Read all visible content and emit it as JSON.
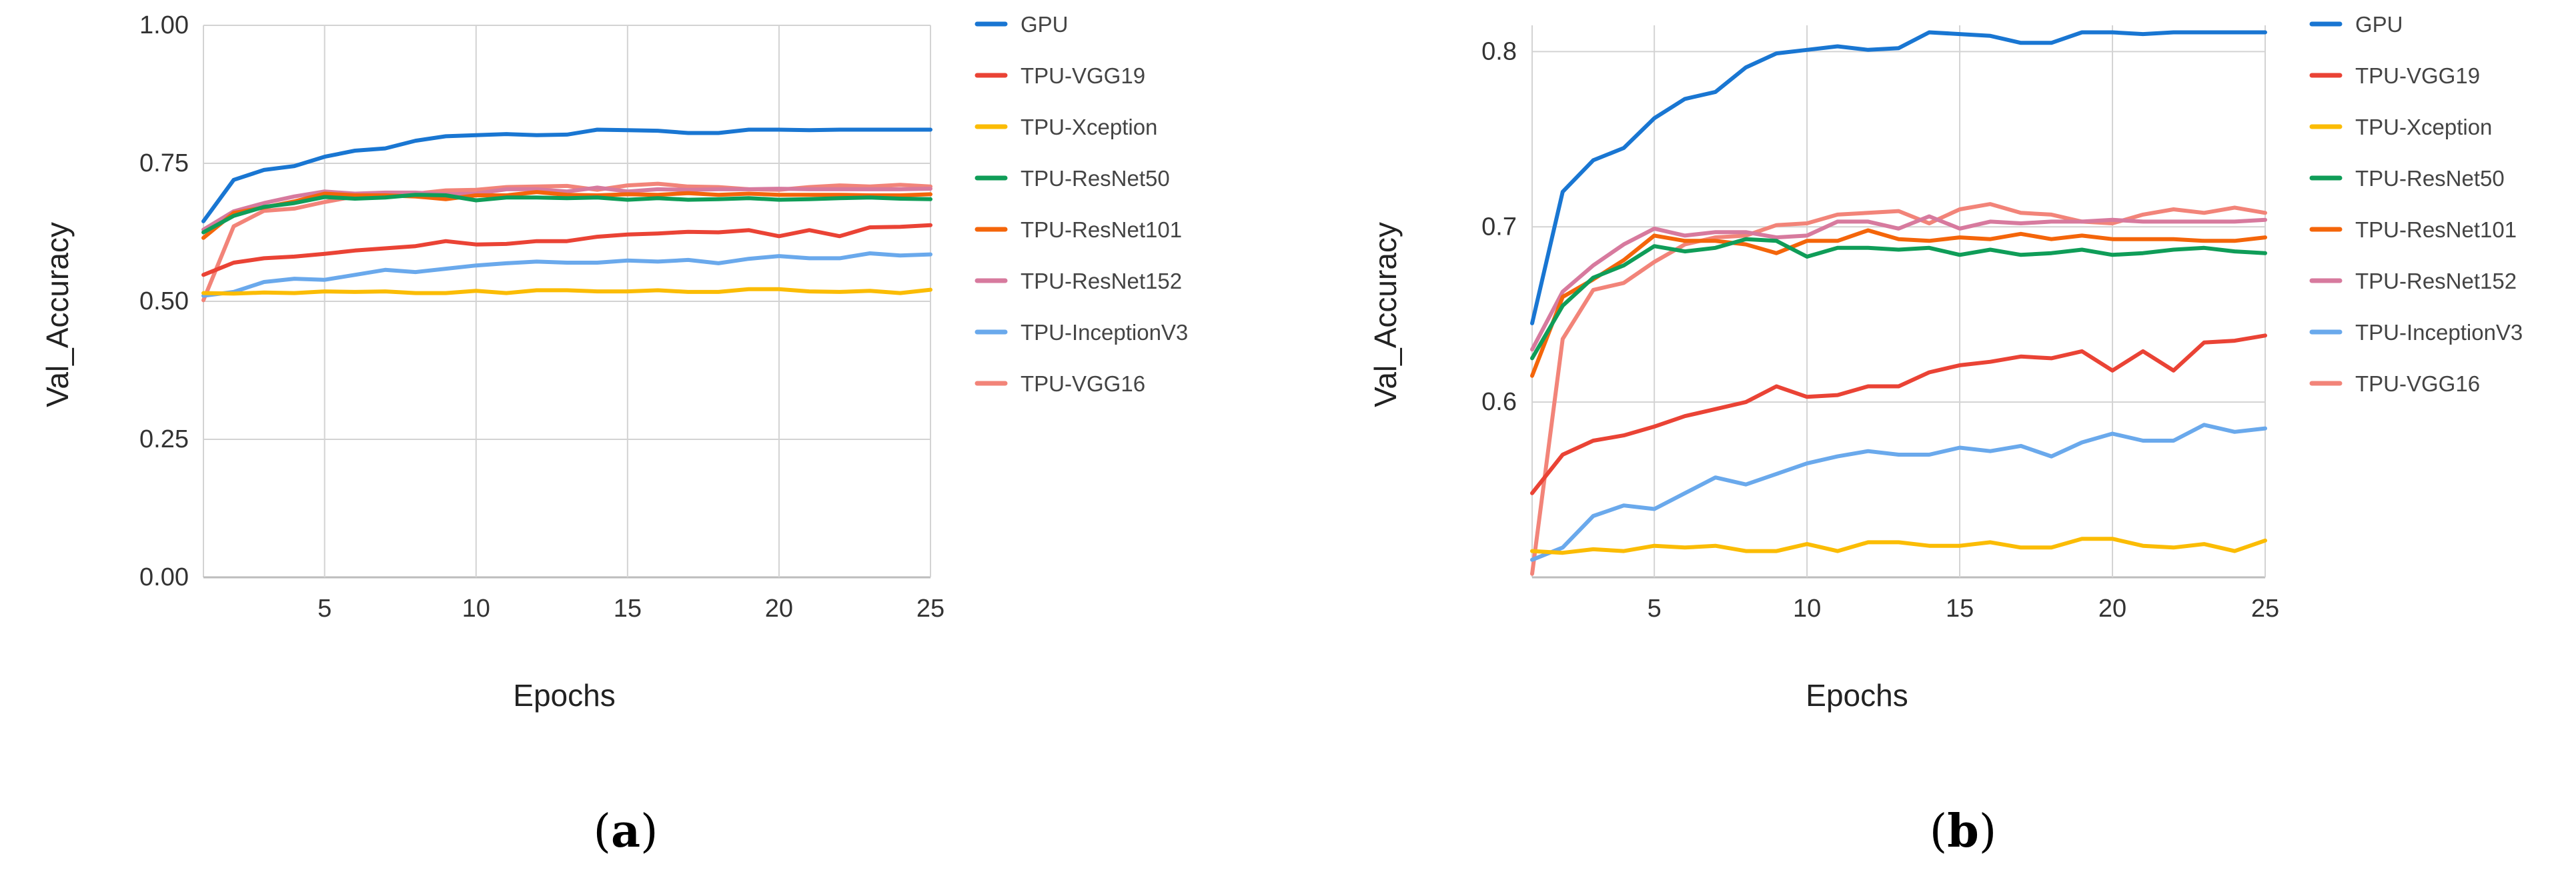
{
  "chart_data": [
    {
      "type": "line",
      "caption_open": "(",
      "caption_letter": "a",
      "caption_close": ")",
      "xlabel": "Epochs",
      "ylabel": "Val_Accuracy",
      "xlim": [
        1,
        25
      ],
      "ylim": [
        0,
        1
      ],
      "x_ticks": [
        5,
        10,
        15,
        20,
        25
      ],
      "y_ticks": [
        0,
        0.25,
        0.5,
        0.75,
        1
      ],
      "y_tick_labels": [
        "0.00",
        "0.25",
        "0.50",
        "0.75",
        "1.00"
      ],
      "grid": true,
      "legend_position": "right",
      "x": [
        1,
        2,
        3,
        4,
        5,
        6,
        7,
        8,
        9,
        10,
        11,
        12,
        13,
        14,
        15,
        16,
        17,
        18,
        19,
        20,
        21,
        22,
        23,
        24,
        25
      ],
      "series": [
        {
          "name": "GPU",
          "color": "#1976D2",
          "values": [
            0.645,
            0.72,
            0.738,
            0.745,
            0.762,
            0.773,
            0.777,
            0.791,
            0.799,
            0.801,
            0.803,
            0.801,
            0.802,
            0.811,
            0.81,
            0.809,
            0.805,
            0.805,
            0.811,
            0.811,
            0.81,
            0.811,
            0.811,
            0.811,
            0.811
          ]
        },
        {
          "name": "TPU-VGG19",
          "color": "#EA4335",
          "values": [
            0.548,
            0.57,
            0.578,
            0.581,
            0.586,
            0.592,
            0.596,
            0.6,
            0.609,
            0.603,
            0.604,
            0.609,
            0.609,
            0.617,
            0.621,
            0.623,
            0.626,
            0.625,
            0.629,
            0.618,
            0.629,
            0.618,
            0.634,
            0.635,
            0.638
          ]
        },
        {
          "name": "TPU-Xception",
          "color": "#FBBC04",
          "values": [
            0.515,
            0.514,
            0.516,
            0.515,
            0.518,
            0.517,
            0.518,
            0.515,
            0.515,
            0.519,
            0.515,
            0.52,
            0.52,
            0.518,
            0.518,
            0.52,
            0.517,
            0.517,
            0.522,
            0.522,
            0.518,
            0.517,
            0.519,
            0.515,
            0.521
          ]
        },
        {
          "name": "TPU-ResNet50",
          "color": "#0F9D58",
          "values": [
            0.625,
            0.655,
            0.671,
            0.678,
            0.689,
            0.686,
            0.688,
            0.693,
            0.692,
            0.683,
            0.688,
            0.688,
            0.687,
            0.688,
            0.684,
            0.687,
            0.684,
            0.685,
            0.687,
            0.684,
            0.685,
            0.687,
            0.688,
            0.686,
            0.685
          ]
        },
        {
          "name": "TPU-ResNet101",
          "color": "#F4650A",
          "values": [
            0.615,
            0.66,
            0.67,
            0.681,
            0.695,
            0.692,
            0.692,
            0.69,
            0.685,
            0.692,
            0.692,
            0.698,
            0.693,
            0.692,
            0.694,
            0.693,
            0.696,
            0.693,
            0.695,
            0.693,
            0.693,
            0.693,
            0.692,
            0.692,
            0.694
          ]
        },
        {
          "name": "TPU-ResNet152",
          "color": "#D77A9E",
          "values": [
            0.63,
            0.663,
            0.678,
            0.69,
            0.699,
            0.695,
            0.697,
            0.697,
            0.694,
            0.695,
            0.703,
            0.703,
            0.699,
            0.706,
            0.699,
            0.703,
            0.702,
            0.703,
            0.703,
            0.704,
            0.703,
            0.703,
            0.703,
            0.703,
            0.704
          ]
        },
        {
          "name": "TPU-InceptionV3",
          "color": "#6AA9EC",
          "values": [
            0.51,
            0.517,
            0.535,
            0.541,
            0.539,
            0.548,
            0.557,
            0.553,
            0.559,
            0.565,
            0.569,
            0.572,
            0.57,
            0.57,
            0.574,
            0.572,
            0.575,
            0.569,
            0.577,
            0.582,
            0.578,
            0.578,
            0.587,
            0.583,
            0.585
          ]
        },
        {
          "name": "TPU-VGG16",
          "color": "#F28479",
          "values": [
            0.502,
            0.636,
            0.664,
            0.668,
            0.68,
            0.69,
            0.694,
            0.695,
            0.701,
            0.702,
            0.707,
            0.708,
            0.709,
            0.702,
            0.71,
            0.713,
            0.708,
            0.707,
            0.703,
            0.702,
            0.707,
            0.71,
            0.708,
            0.711,
            0.708
          ]
        }
      ]
    },
    {
      "type": "line",
      "caption_open": "(",
      "caption_letter": "b",
      "caption_close": ")",
      "xlabel": "Epochs",
      "ylabel": "Val_Accuracy",
      "xlim": [
        1,
        25
      ],
      "ylim": [
        0.5,
        0.815
      ],
      "x_ticks": [
        5,
        10,
        15,
        20,
        25
      ],
      "y_ticks": [
        0.6,
        0.7,
        0.8
      ],
      "y_tick_labels": [
        "0.6",
        "0.7",
        "0.8"
      ],
      "grid": true,
      "legend_position": "right",
      "x": [
        1,
        2,
        3,
        4,
        5,
        6,
        7,
        8,
        9,
        10,
        11,
        12,
        13,
        14,
        15,
        16,
        17,
        18,
        19,
        20,
        21,
        22,
        23,
        24,
        25
      ],
      "series": [
        {
          "name": "GPU",
          "color": "#1976D2",
          "values": [
            0.645,
            0.72,
            0.738,
            0.745,
            0.762,
            0.773,
            0.777,
            0.791,
            0.799,
            0.801,
            0.803,
            0.801,
            0.802,
            0.811,
            0.81,
            0.809,
            0.805,
            0.805,
            0.811,
            0.811,
            0.81,
            0.811,
            0.811,
            0.811,
            0.811
          ]
        },
        {
          "name": "TPU-VGG19",
          "color": "#EA4335",
          "values": [
            0.548,
            0.57,
            0.578,
            0.581,
            0.586,
            0.592,
            0.596,
            0.6,
            0.609,
            0.603,
            0.604,
            0.609,
            0.609,
            0.617,
            0.621,
            0.623,
            0.626,
            0.625,
            0.629,
            0.618,
            0.629,
            0.618,
            0.634,
            0.635,
            0.638
          ]
        },
        {
          "name": "TPU-Xception",
          "color": "#FBBC04",
          "values": [
            0.515,
            0.514,
            0.516,
            0.515,
            0.518,
            0.517,
            0.518,
            0.515,
            0.515,
            0.519,
            0.515,
            0.52,
            0.52,
            0.518,
            0.518,
            0.52,
            0.517,
            0.517,
            0.522,
            0.522,
            0.518,
            0.517,
            0.519,
            0.515,
            0.521
          ]
        },
        {
          "name": "TPU-ResNet50",
          "color": "#0F9D58",
          "values": [
            0.625,
            0.655,
            0.671,
            0.678,
            0.689,
            0.686,
            0.688,
            0.693,
            0.692,
            0.683,
            0.688,
            0.688,
            0.687,
            0.688,
            0.684,
            0.687,
            0.684,
            0.685,
            0.687,
            0.684,
            0.685,
            0.687,
            0.688,
            0.686,
            0.685
          ]
        },
        {
          "name": "TPU-ResNet101",
          "color": "#F4650A",
          "values": [
            0.615,
            0.66,
            0.67,
            0.681,
            0.695,
            0.692,
            0.692,
            0.69,
            0.685,
            0.692,
            0.692,
            0.698,
            0.693,
            0.692,
            0.694,
            0.693,
            0.696,
            0.693,
            0.695,
            0.693,
            0.693,
            0.693,
            0.692,
            0.692,
            0.694
          ]
        },
        {
          "name": "TPU-ResNet152",
          "color": "#D77A9E",
          "values": [
            0.63,
            0.663,
            0.678,
            0.69,
            0.699,
            0.695,
            0.697,
            0.697,
            0.694,
            0.695,
            0.703,
            0.703,
            0.699,
            0.706,
            0.699,
            0.703,
            0.702,
            0.703,
            0.703,
            0.704,
            0.703,
            0.703,
            0.703,
            0.703,
            0.704
          ]
        },
        {
          "name": "TPU-InceptionV3",
          "color": "#6AA9EC",
          "values": [
            0.51,
            0.517,
            0.535,
            0.541,
            0.539,
            0.548,
            0.557,
            0.553,
            0.559,
            0.565,
            0.569,
            0.572,
            0.57,
            0.57,
            0.574,
            0.572,
            0.575,
            0.569,
            0.577,
            0.582,
            0.578,
            0.578,
            0.587,
            0.583,
            0.585
          ]
        },
        {
          "name": "TPU-VGG16",
          "color": "#F28479",
          "values": [
            0.502,
            0.636,
            0.664,
            0.668,
            0.68,
            0.69,
            0.694,
            0.695,
            0.701,
            0.702,
            0.707,
            0.708,
            0.709,
            0.702,
            0.71,
            0.713,
            0.708,
            0.707,
            0.703,
            0.702,
            0.707,
            0.71,
            0.708,
            0.711,
            0.708
          ]
        }
      ]
    }
  ]
}
